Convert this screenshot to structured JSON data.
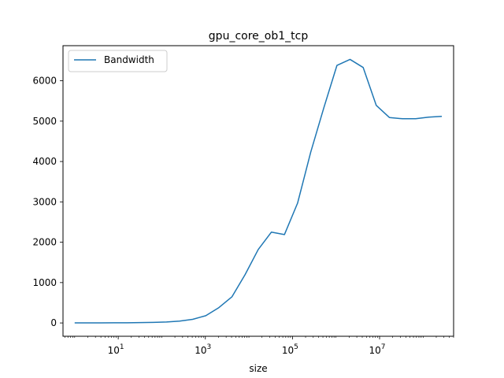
{
  "chart_data": {
    "type": "line",
    "title": "gpu_core_ob1_tcp",
    "xlabel": "size",
    "ylabel": "",
    "x_scale": "log",
    "xlim": [
      0.54,
      500000000
    ],
    "ylim": [
      -330,
      6870
    ],
    "x_ticks": [
      {
        "value": 10,
        "base": "10",
        "exp": "1"
      },
      {
        "value": 1000,
        "base": "10",
        "exp": "3"
      },
      {
        "value": 100000,
        "base": "10",
        "exp": "5"
      },
      {
        "value": 10000000,
        "base": "10",
        "exp": "7"
      }
    ],
    "y_ticks": [
      0,
      1000,
      2000,
      3000,
      4000,
      5000,
      6000
    ],
    "grid": false,
    "legend": {
      "position": "top-left"
    },
    "series": [
      {
        "name": "Bandwidth",
        "color": "#1f77b4",
        "x": [
          1,
          2,
          4,
          8,
          16,
          32,
          64,
          128,
          256,
          512,
          1024,
          2048,
          4096,
          8192,
          16384,
          32768,
          65536,
          131072,
          262144,
          524288,
          1048576,
          2097152,
          4194304,
          8388608,
          16777216,
          33554432,
          67108864,
          134217728,
          268435456
        ],
        "y": [
          1,
          1,
          2,
          3,
          5,
          9,
          14,
          24,
          45,
          90,
          180,
          380,
          650,
          1200,
          1820,
          2250,
          2190,
          2970,
          4230,
          5330,
          6380,
          6530,
          6330,
          5390,
          5090,
          5060,
          5060,
          5100,
          5120
        ]
      }
    ]
  }
}
